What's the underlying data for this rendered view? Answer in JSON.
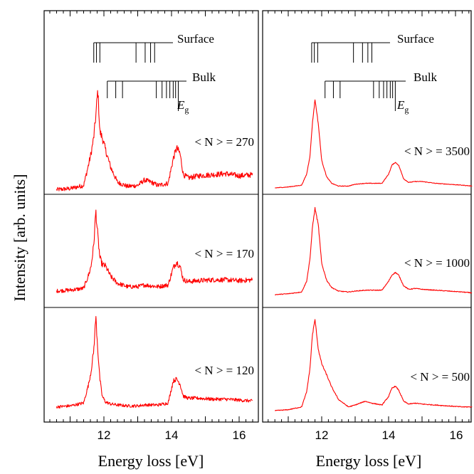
{
  "colors": {
    "curve": "#ff0000",
    "axis": "#000000",
    "background": "#ffffff"
  },
  "ylabel": "Intensity [arb. units]",
  "chart_data": [
    {
      "type": "line",
      "column": "left",
      "xlabel": "Energy loss [eV]",
      "xlim": [
        10.4,
        16.6
      ],
      "xticks": [
        12,
        14,
        16
      ],
      "level_diagrams": {
        "surface": {
          "label": "Surface",
          "lines": [
            11.7,
            11.78,
            11.88,
            12.95,
            13.22,
            13.38,
            13.5
          ]
        },
        "bulk": {
          "label": "Bulk",
          "lines": [
            12.1,
            12.35,
            12.55,
            13.55,
            13.72,
            13.85,
            13.95,
            14.05,
            14.12,
            14.2
          ]
        },
        "gap": {
          "label": "E",
          "subscript": "g",
          "x": 14.2
        }
      },
      "panels": [
        {
          "label": "< N > = 270",
          "series": [
            {
              "x": [
                10.6,
                11.0,
                11.4,
                11.55,
                11.62,
                11.7,
                11.76,
                11.82,
                11.88,
                11.95,
                12.05,
                12.2,
                12.4,
                12.7,
                13.0,
                13.2,
                13.4,
                13.6,
                13.9,
                14.05,
                14.15,
                14.25,
                14.35,
                14.5,
                14.8,
                15.2,
                15.6,
                16.0,
                16.4
              ],
              "y": [
                0.01,
                0.02,
                0.05,
                0.25,
                0.35,
                0.5,
                0.7,
                0.95,
                0.55,
                0.5,
                0.38,
                0.22,
                0.08,
                0.04,
                0.05,
                0.1,
                0.08,
                0.05,
                0.07,
                0.3,
                0.4,
                0.35,
                0.15,
                0.12,
                0.14,
                0.15,
                0.16,
                0.14,
                0.15
              ],
              "noise": 0.04
            }
          ]
        },
        {
          "label": "< N > = 170",
          "series": [
            {
              "x": [
                10.6,
                11.0,
                11.4,
                11.55,
                11.62,
                11.7,
                11.76,
                11.82,
                11.88,
                11.95,
                12.05,
                12.2,
                12.4,
                12.7,
                13.0,
                13.2,
                13.4,
                13.6,
                13.9,
                14.05,
                14.15,
                14.25,
                14.35,
                14.5,
                14.8,
                15.2,
                15.6,
                16.0,
                16.4
              ],
              "y": [
                0.01,
                0.02,
                0.04,
                0.2,
                0.3,
                0.55,
                0.95,
                0.65,
                0.4,
                0.32,
                0.3,
                0.18,
                0.1,
                0.06,
                0.06,
                0.08,
                0.07,
                0.06,
                0.08,
                0.28,
                0.35,
                0.3,
                0.14,
                0.12,
                0.13,
                0.14,
                0.14,
                0.13,
                0.14
              ],
              "noise": 0.045
            }
          ]
        },
        {
          "label": "< N > = 120",
          "series": [
            {
              "x": [
                10.6,
                11.0,
                11.4,
                11.55,
                11.62,
                11.7,
                11.76,
                11.82,
                11.88,
                11.95,
                12.05,
                12.2,
                12.4,
                12.7,
                13.0,
                13.2,
                13.4,
                13.6,
                13.9,
                14.05,
                14.15,
                14.25,
                14.35,
                14.5,
                14.8,
                15.2,
                15.6,
                16.0,
                16.4
              ],
              "y": [
                0.01,
                0.02,
                0.05,
                0.25,
                0.38,
                0.6,
                0.95,
                0.6,
                0.3,
                0.12,
                0.06,
                0.04,
                0.03,
                0.02,
                0.02,
                0.03,
                0.03,
                0.03,
                0.05,
                0.28,
                0.3,
                0.25,
                0.12,
                0.1,
                0.1,
                0.09,
                0.09,
                0.08,
                0.07
              ],
              "noise": 0.03
            }
          ]
        }
      ]
    },
    {
      "type": "line",
      "column": "right",
      "xlabel": "Energy loss [eV]",
      "xlim": [
        10.4,
        16.6
      ],
      "xticks": [
        12,
        14,
        16
      ],
      "level_diagrams": {
        "surface": {
          "label": "Surface",
          "lines": [
            11.7,
            11.78,
            11.88,
            12.95,
            13.22,
            13.38,
            13.5
          ]
        },
        "bulk": {
          "label": "Bulk",
          "lines": [
            12.1,
            12.35,
            12.55,
            13.55,
            13.72,
            13.85,
            13.95,
            14.05,
            14.12,
            14.2
          ]
        },
        "gap": {
          "label": "E",
          "subscript": "g",
          "x": 14.2
        }
      },
      "panels": [
        {
          "label": "< N > = 3500",
          "series": [
            {
              "x": [
                10.6,
                11.0,
                11.4,
                11.55,
                11.65,
                11.72,
                11.8,
                11.9,
                12.0,
                12.15,
                12.3,
                12.5,
                12.8,
                13.0,
                13.3,
                13.5,
                13.8,
                14.0,
                14.1,
                14.2,
                14.3,
                14.45,
                14.6,
                14.8,
                15.0,
                15.4,
                15.8,
                16.2,
                16.5
              ],
              "y": [
                0.0,
                0.01,
                0.03,
                0.15,
                0.35,
                0.7,
                0.97,
                0.7,
                0.3,
                0.12,
                0.05,
                0.02,
                0.02,
                0.04,
                0.05,
                0.05,
                0.05,
                0.15,
                0.25,
                0.28,
                0.25,
                0.1,
                0.06,
                0.07,
                0.07,
                0.05,
                0.04,
                0.03,
                0.02
              ],
              "noise": 0.006
            }
          ]
        },
        {
          "label": "< N > = 1000",
          "series": [
            {
              "x": [
                10.6,
                11.0,
                11.4,
                11.55,
                11.65,
                11.72,
                11.8,
                11.9,
                12.0,
                12.15,
                12.3,
                12.5,
                12.8,
                13.0,
                13.3,
                13.5,
                13.8,
                14.0,
                14.1,
                14.2,
                14.3,
                14.45,
                14.6,
                14.8,
                15.0,
                15.4,
                15.8,
                16.2,
                16.5
              ],
              "y": [
                0.0,
                0.01,
                0.03,
                0.15,
                0.4,
                0.75,
                0.97,
                0.78,
                0.35,
                0.16,
                0.08,
                0.04,
                0.03,
                0.04,
                0.05,
                0.05,
                0.05,
                0.15,
                0.22,
                0.25,
                0.22,
                0.1,
                0.06,
                0.07,
                0.06,
                0.05,
                0.04,
                0.03,
                0.02
              ],
              "noise": 0.008
            }
          ]
        },
        {
          "label": "< N > = 500",
          "series": [
            {
              "x": [
                10.6,
                11.0,
                11.4,
                11.55,
                11.65,
                11.72,
                11.8,
                11.9,
                12.0,
                12.15,
                12.3,
                12.5,
                12.8,
                13.0,
                13.3,
                13.5,
                13.8,
                14.0,
                14.1,
                14.2,
                14.3,
                14.45,
                14.6,
                14.8,
                15.0,
                15.4,
                15.8,
                16.2,
                16.5
              ],
              "y": [
                0.0,
                0.01,
                0.04,
                0.2,
                0.45,
                0.8,
                0.97,
                0.65,
                0.5,
                0.38,
                0.25,
                0.12,
                0.04,
                0.06,
                0.1,
                0.08,
                0.06,
                0.15,
                0.24,
                0.26,
                0.22,
                0.1,
                0.07,
                0.08,
                0.07,
                0.06,
                0.05,
                0.04,
                0.04
              ],
              "noise": 0.008
            }
          ]
        }
      ]
    }
  ]
}
